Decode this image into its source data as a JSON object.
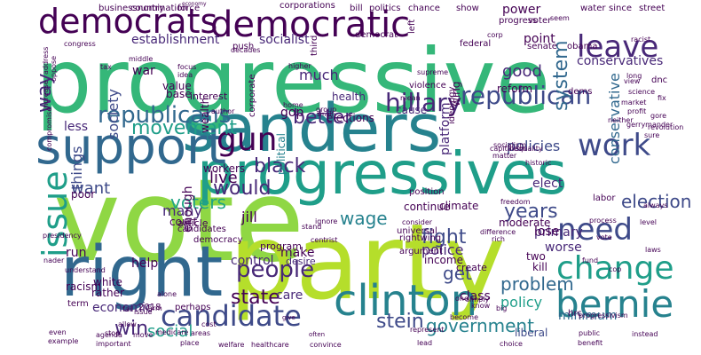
{
  "palette": {
    "yellow_green": "#b5de2b",
    "lime": "#8fd744",
    "green": "#35b779",
    "teal_green": "#21a585",
    "teal": "#1f9e89",
    "cyan_teal": "#26828e",
    "steel_blue": "#31688e",
    "blue": "#3e4a89",
    "indigo": "#482878",
    "dark_purple": "#440154"
  },
  "words": [
    "progressive",
    "vote",
    "party",
    "sanders",
    "progressives",
    "right",
    "support",
    "democratic",
    "democrats",
    "clinton",
    "candidate",
    "bernie",
    "issue",
    "change",
    "need",
    "work",
    "leave",
    "gun",
    "republicans",
    "republican",
    "hillary",
    "people",
    "stein",
    "would",
    "system",
    "voters",
    "movement",
    "black",
    "green",
    "state",
    "way",
    "better",
    "fight",
    "election",
    "years",
    "wage",
    "problem",
    "conservatives",
    "conservative",
    "government",
    "social",
    "win",
    "good",
    "police",
    "policy",
    "policies",
    "point",
    "society",
    "want",
    "things",
    "get",
    "much",
    "live",
    "help",
    "make",
    "many",
    "class",
    "power",
    "care",
    "money",
    "jill",
    "minimum",
    "liberal",
    "socialist",
    "establishment",
    "workers",
    "economic",
    "control",
    "enough",
    "poor",
    "primary",
    "gop",
    "white",
    "less",
    "run",
    "wing",
    "political",
    "income",
    "war",
    "lose",
    "worse",
    "elect",
    "two",
    "kill",
    "reform",
    "platform",
    "elections",
    "cause",
    "value",
    "base",
    "health",
    "wealth",
    "racism",
    "rather",
    "court",
    "platform",
    "continue",
    "real",
    "climate",
    "moderate",
    "create",
    "nominee",
    "interest",
    "article",
    "program",
    "desire",
    "universal",
    "rightwing",
    "argument",
    "term",
    "ideology",
    "corporations",
    "corporate",
    "democrat",
    "country",
    "force",
    "business",
    "nomination",
    "economy",
    "bill",
    "politics",
    "chance",
    "show",
    "progress",
    "voter",
    "water",
    "since",
    "street",
    "push",
    "third",
    "federal",
    "senate",
    "obama",
    "tax",
    "higher",
    "party",
    "left",
    "private",
    "middle",
    "focus",
    "idea",
    "decades",
    "seem",
    "dems",
    "violence",
    "position",
    "labor",
    "even",
    "example",
    "important",
    "agenda",
    "allow",
    "move",
    "stop",
    "medicare",
    "2018",
    "perhaps",
    "areas",
    "cost",
    "place",
    "welfare",
    "healthcare",
    "convince",
    "give",
    "often",
    "represent",
    "public",
    "benefit",
    "instead",
    "lead",
    "choice",
    "progressivism",
    "fund",
    "hrc",
    "cop",
    "laws",
    "level",
    "difference",
    "rich",
    "always",
    "dnc",
    "view",
    "science",
    "long",
    "fix",
    "gerrymander",
    "market",
    "profit",
    "gore",
    "racist",
    "candidates",
    "democracy",
    "presidency",
    "nader",
    "understand",
    "compromise",
    "increase",
    "oppose",
    "address",
    "congress",
    "author",
    "home",
    "group",
    "small",
    "become",
    "one",
    "simply",
    "big",
    "capitalism",
    "socialism",
    "inequality",
    "matter",
    "neither",
    "sure",
    "revolution",
    "historic",
    "freedom",
    "ignore",
    "stand",
    "centrist",
    "mean",
    "supreme",
    "warren",
    "corp",
    "alone",
    "issue",
    "arm",
    "fail",
    "consider",
    "know",
    "vote",
    "process",
    "actually",
    "wag",
    "mayor"
  ]
}
